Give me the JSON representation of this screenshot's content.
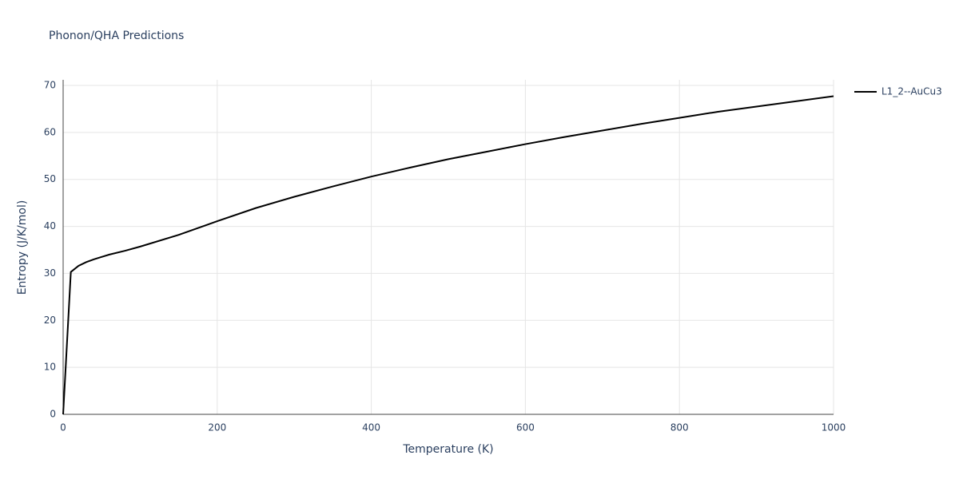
{
  "chart_data": {
    "type": "line",
    "title": "Phonon/QHA Predictions",
    "x_label": "Temperature (K)",
    "y_label": "Entropy (J/K/mol)",
    "x": [
      0,
      10,
      20,
      30,
      40,
      50,
      60,
      80,
      100,
      150,
      200,
      250,
      300,
      350,
      400,
      450,
      500,
      550,
      600,
      650,
      700,
      750,
      800,
      850,
      900,
      950,
      1000
    ],
    "series": [
      {
        "name": "L1_2--AuCu3",
        "color": "#000000",
        "values": [
          0,
          30.3,
          31.6,
          32.4,
          33.0,
          33.5,
          34.0,
          34.8,
          35.7,
          38.2,
          41.1,
          43.9,
          46.3,
          48.5,
          50.6,
          52.5,
          54.3,
          55.9,
          57.5,
          59.0,
          60.4,
          61.8,
          63.1,
          64.4,
          65.5,
          66.6,
          67.7
        ]
      }
    ],
    "xlim": [
      0,
      1000
    ],
    "xticks": [
      0,
      200,
      400,
      600,
      800,
      1000
    ],
    "ylim": [
      0,
      70
    ],
    "yticks": [
      0,
      10,
      20,
      30,
      40,
      50,
      60,
      70
    ],
    "grid": true,
    "legend": "right"
  }
}
